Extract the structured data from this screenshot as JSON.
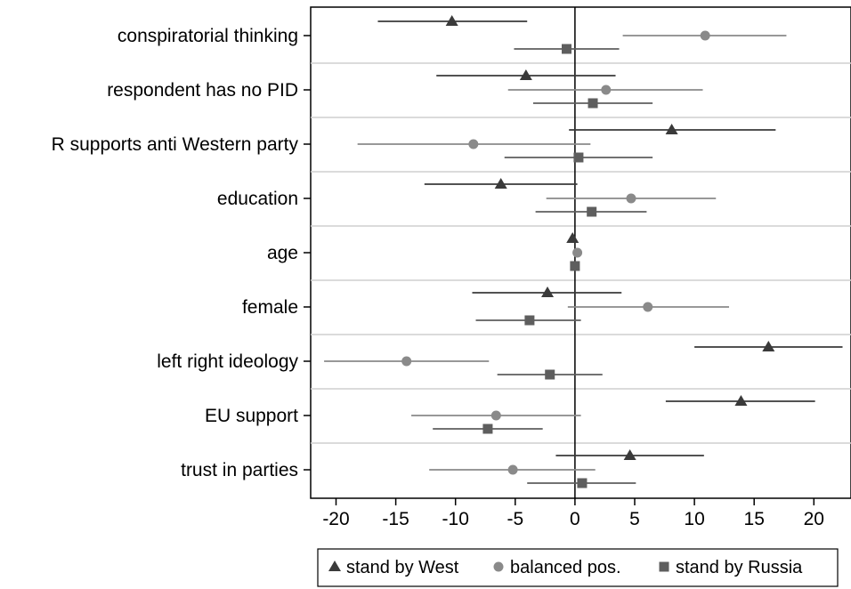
{
  "chart_data": {
    "type": "scatter",
    "categories": [
      "conspiratorial thinking",
      "respondent has no PID",
      "R supports anti Western party",
      "education",
      "age",
      "female",
      "left right ideology",
      "EU support",
      "trust in parties"
    ],
    "series": [
      {
        "name": "stand by West",
        "marker": "triangle",
        "color": "#3a3a3a",
        "values": [
          -10.3,
          -4.1,
          8.1,
          -6.2,
          -0.2,
          -2.3,
          16.2,
          13.9,
          4.6
        ],
        "ci_low": [
          -16.5,
          -11.6,
          -0.5,
          -12.6,
          -0.2,
          -8.6,
          10.0,
          7.6,
          -1.6
        ],
        "ci_high": [
          -4.0,
          3.4,
          16.8,
          0.2,
          -0.2,
          3.9,
          22.4,
          20.1,
          10.8
        ]
      },
      {
        "name": "balanced pos.",
        "marker": "circle",
        "color": "#8a8a8a",
        "values": [
          10.9,
          2.6,
          -8.5,
          4.7,
          0.2,
          6.1,
          -14.1,
          -6.6,
          -5.2
        ],
        "ci_low": [
          4.0,
          -5.6,
          -18.2,
          -2.4,
          0.2,
          -0.6,
          -21.0,
          -13.7,
          -12.2
        ],
        "ci_high": [
          17.7,
          10.7,
          1.3,
          11.8,
          0.2,
          12.9,
          -7.2,
          0.5,
          1.7
        ]
      },
      {
        "name": "stand by Russia",
        "marker": "square",
        "color": "#5e5e5e",
        "values": [
          -0.7,
          1.5,
          0.3,
          1.4,
          0.0,
          -3.8,
          -2.1,
          -7.3,
          0.6
        ],
        "ci_low": [
          -5.1,
          -3.5,
          -5.9,
          -3.3,
          0.0,
          -8.3,
          -6.5,
          -11.9,
          -4.0
        ],
        "ci_high": [
          3.7,
          6.5,
          6.5,
          6.0,
          0.0,
          0.5,
          2.3,
          -2.7,
          5.1
        ]
      }
    ],
    "xticks": [
      -20,
      -15,
      -10,
      -5,
      0,
      5,
      10,
      15,
      20
    ],
    "xlim": [
      -22.6,
      23.0
    ],
    "reference_line": 0,
    "grid": true,
    "legend": {
      "position": "bottom"
    }
  }
}
